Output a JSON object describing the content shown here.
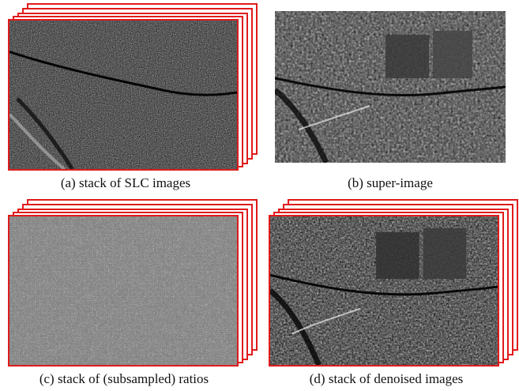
{
  "captions": {
    "a": "(a) stack of SLC images",
    "b": "(b) super-image",
    "c": "(c) stack of (subsampled) ratios",
    "d": "(d) stack of denoised images"
  },
  "colors": {
    "frame_border": "#e01b1b",
    "background": "#ffffff"
  }
}
